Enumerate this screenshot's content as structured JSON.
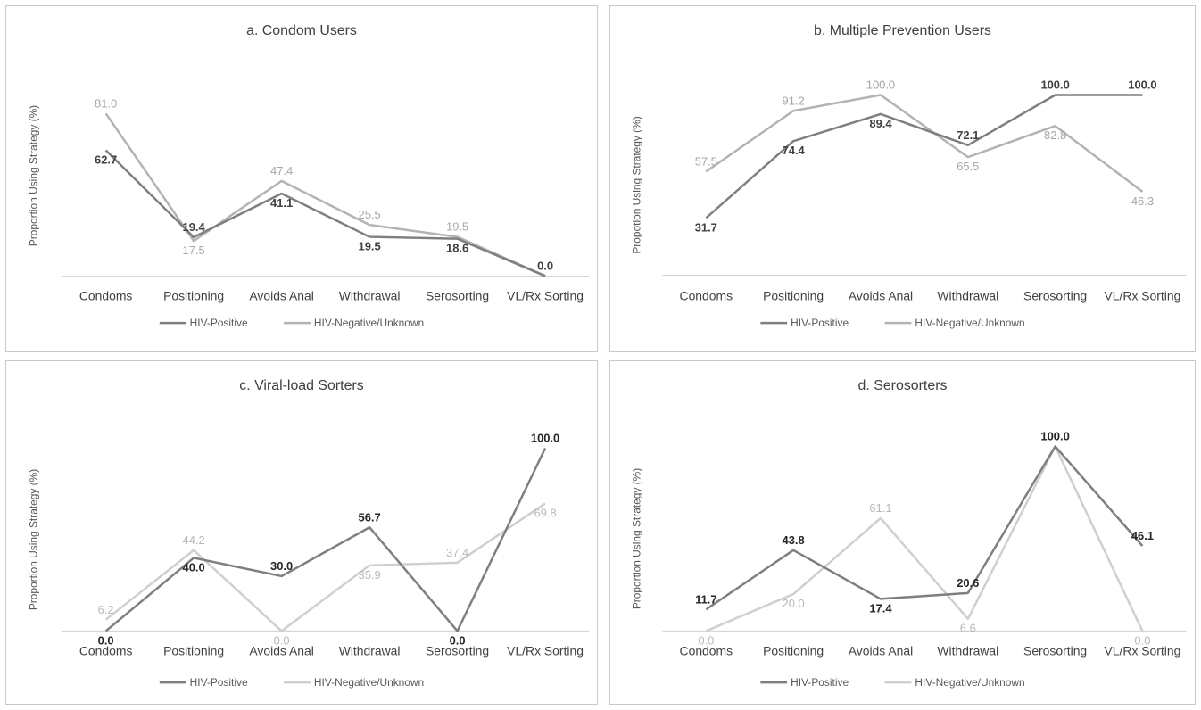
{
  "colors": {
    "hiv_positive": "#7f7f7f",
    "hiv_negative": "#b3b3b3",
    "hiv_negative_light": "#cfcfcf",
    "axis": "#d0d0d0"
  },
  "chart_data": [
    {
      "type": "line",
      "title": "a. Condom Users",
      "ylabel": "Proportion Using Strategy (%)",
      "ylim": [
        0,
        100
      ],
      "grid": false,
      "legend": "bottom",
      "categories": [
        "Condoms",
        "Positioning",
        "Avoids Anal",
        "Withdrawal",
        "Serosorting",
        "VL/Rx Sorting"
      ],
      "series": [
        {
          "name": "HIV-Positive",
          "values": [
            62.7,
            19.4,
            41.1,
            19.5,
            18.6,
            0.0
          ]
        },
        {
          "name": "HIV-Negative/Unknown",
          "values": [
            81.0,
            17.5,
            47.4,
            25.5,
            19.5,
            0.0
          ]
        }
      ]
    },
    {
      "type": "line",
      "title": "b. Multiple Prevention Users",
      "ylabel": "Propotion Using Strategy (%)",
      "ylim": [
        0,
        100
      ],
      "grid": false,
      "legend": "bottom",
      "categories": [
        "Condoms",
        "Positioning",
        "Avoids Anal",
        "Withdrawal",
        "Serosorting",
        "VL/Rx Sorting"
      ],
      "series": [
        {
          "name": "HIV-Positive",
          "values": [
            31.7,
            74.4,
            89.4,
            72.1,
            100.0,
            100.0
          ]
        },
        {
          "name": "HIV-Negative/Unknown",
          "values": [
            57.5,
            91.2,
            100.0,
            65.5,
            82.8,
            46.3
          ]
        }
      ]
    },
    {
      "type": "line",
      "title": "c. Viral-load Sorters",
      "ylabel": "Proportion Using Strategy (%)",
      "ylim": [
        0,
        100
      ],
      "grid": false,
      "legend": "bottom",
      "categories": [
        "Condoms",
        "Positioning",
        "Avoids Anal",
        "Withdrawal",
        "Serosorting",
        "VL/Rx Sorting"
      ],
      "series": [
        {
          "name": "HIV-Positive",
          "values": [
            0.0,
            40.0,
            30.0,
            56.7,
            0.0,
            100.0
          ]
        },
        {
          "name": "HIV-Negative/Unknown",
          "values": [
            6.2,
            44.2,
            0.0,
            35.9,
            37.4,
            69.8
          ]
        }
      ]
    },
    {
      "type": "line",
      "title": "d. Serosorters",
      "ylabel": "Proportion Using Strategy (%)",
      "ylim": [
        0,
        100
      ],
      "grid": false,
      "legend": "bottom",
      "categories": [
        "Condoms",
        "Positioning",
        "Avoids Anal",
        "Withdrawal",
        "Serosorting",
        "VL/Rx Sorting"
      ],
      "series": [
        {
          "name": "HIV-Positive",
          "values": [
            11.7,
            43.8,
            17.4,
            20.6,
            100.0,
            46.1
          ]
        },
        {
          "name": "HIV-Negative/Unknown",
          "values": [
            0.0,
            20.0,
            61.1,
            6.6,
            100.0,
            0.0
          ]
        }
      ]
    }
  ]
}
